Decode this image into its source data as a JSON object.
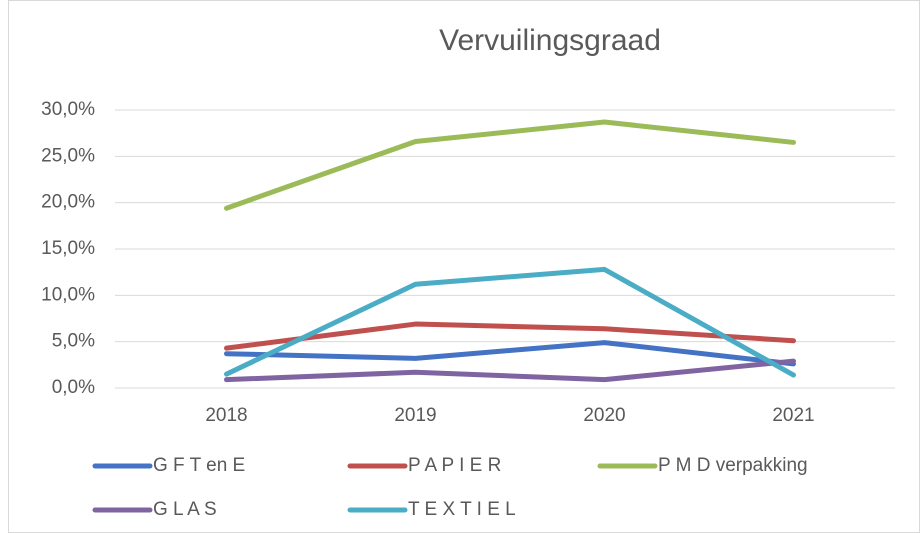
{
  "chart_data": {
    "type": "line",
    "title": "Vervuilingsgraad",
    "categories": [
      "2018",
      "2019",
      "2020",
      "2021"
    ],
    "series": [
      {
        "name": "G F T en E",
        "color": "#4472c4",
        "values": [
          3.7,
          3.2,
          4.9,
          2.6
        ]
      },
      {
        "name": "P A P I E R",
        "color": "#c0504d",
        "values": [
          4.3,
          6.9,
          6.4,
          5.1
        ]
      },
      {
        "name": "P M D verpakking",
        "color": "#9bbb59",
        "values": [
          19.4,
          26.6,
          28.7,
          26.5
        ]
      },
      {
        "name": "G L A S",
        "color": "#8064a2",
        "values": [
          0.9,
          1.7,
          0.9,
          2.9
        ]
      },
      {
        "name": "T E X T I E L",
        "color": "#4bacc6",
        "values": [
          1.5,
          11.2,
          12.8,
          1.4
        ]
      }
    ],
    "ylim": [
      0,
      30
    ],
    "yticks": [
      {
        "value": 0,
        "label": "0,0%"
      },
      {
        "value": 5,
        "label": "5,0%"
      },
      {
        "value": 10,
        "label": "10,0%"
      },
      {
        "value": 15,
        "label": "15,0%"
      },
      {
        "value": 20,
        "label": "20,0%"
      },
      {
        "value": 25,
        "label": "25,0%"
      },
      {
        "value": 30,
        "label": "30,0%"
      }
    ],
    "grid": true
  }
}
